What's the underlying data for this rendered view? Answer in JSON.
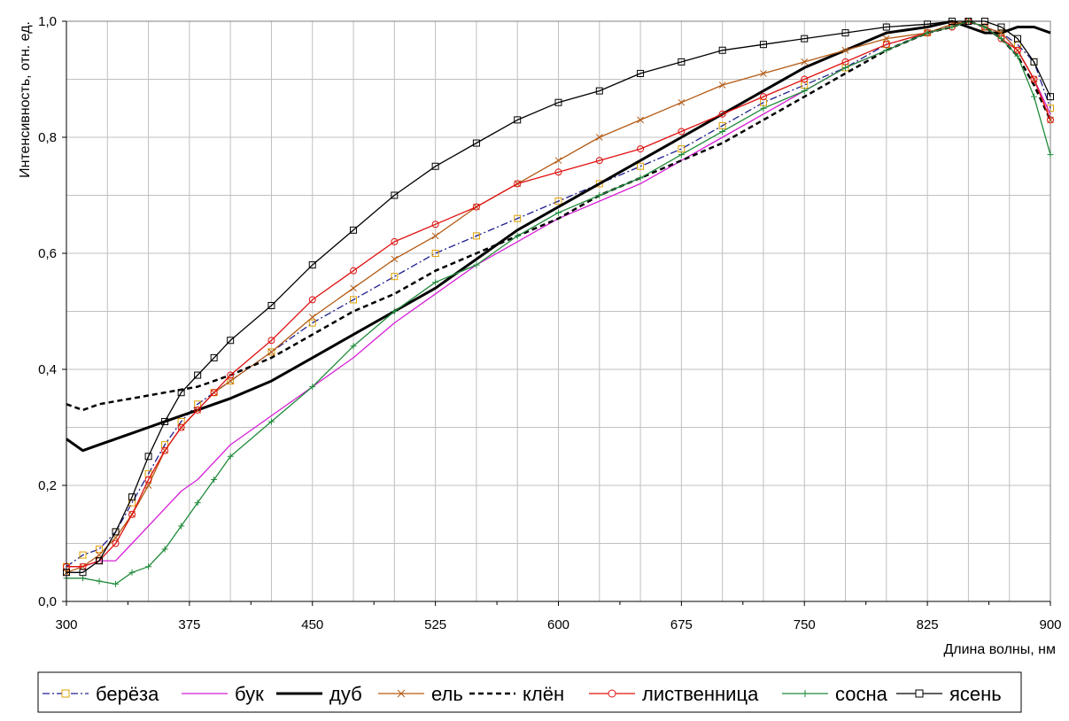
{
  "chart_data": {
    "type": "line",
    "ylabel": "Интенсивность, отн. ед.",
    "xlabel": "Длина волны, нм",
    "xlim": [
      300,
      900
    ],
    "ylim": [
      0,
      1.0
    ],
    "x_ticks": [
      300,
      375,
      450,
      525,
      600,
      675,
      750,
      825,
      900
    ],
    "x_tick_labels": [
      "300",
      "375",
      "450",
      "525",
      "600",
      "675",
      "750",
      "825",
      "900"
    ],
    "y_ticks": [
      0,
      0.2,
      0.4,
      0.6,
      0.8,
      1.0
    ],
    "y_tick_labels": [
      "0,0",
      "0,2",
      "0,4",
      "0,6",
      "0,8",
      "1,0"
    ],
    "grid": true,
    "legend_position": "bottom",
    "x": [
      300,
      310,
      320,
      330,
      340,
      350,
      360,
      370,
      380,
      390,
      400,
      425,
      450,
      475,
      500,
      525,
      550,
      575,
      600,
      625,
      650,
      675,
      700,
      725,
      750,
      775,
      800,
      825,
      840,
      850,
      860,
      870,
      880,
      890,
      900
    ],
    "series": [
      {
        "name": "берёза",
        "color": "#1f1f8f",
        "dash": "8,3,2,3",
        "marker": "square",
        "marker_color": "#e0a000",
        "values": [
          0.06,
          0.08,
          0.09,
          0.12,
          0.17,
          0.22,
          0.27,
          0.31,
          0.34,
          0.36,
          0.38,
          0.43,
          0.48,
          0.52,
          0.56,
          0.6,
          0.63,
          0.66,
          0.69,
          0.72,
          0.75,
          0.78,
          0.82,
          0.86,
          0.89,
          0.92,
          0.96,
          0.98,
          0.995,
          1.0,
          0.99,
          0.98,
          0.96,
          0.93,
          0.85
        ]
      },
      {
        "name": "бук",
        "color": "#d61fd6",
        "dash": "",
        "marker": "none",
        "values": [
          0.06,
          0.06,
          0.07,
          0.07,
          0.1,
          0.13,
          0.16,
          0.19,
          0.21,
          0.24,
          0.27,
          0.32,
          0.37,
          0.42,
          0.48,
          0.53,
          0.58,
          0.62,
          0.66,
          0.69,
          0.72,
          0.76,
          0.8,
          0.84,
          0.88,
          0.92,
          0.95,
          0.98,
          0.99,
          1.0,
          0.99,
          0.98,
          0.95,
          0.9,
          0.84
        ]
      },
      {
        "name": "дуб",
        "color": "#000000",
        "dash": "",
        "marker": "none",
        "width": 3,
        "values": [
          0.28,
          0.26,
          0.27,
          0.28,
          0.29,
          0.3,
          0.31,
          0.32,
          0.33,
          0.34,
          0.35,
          0.38,
          0.42,
          0.46,
          0.5,
          0.54,
          0.59,
          0.64,
          0.68,
          0.72,
          0.76,
          0.8,
          0.84,
          0.88,
          0.92,
          0.95,
          0.98,
          0.99,
          1.0,
          0.99,
          0.98,
          0.98,
          0.99,
          0.99,
          0.98
        ]
      },
      {
        "name": "ель",
        "color": "#b45a14",
        "dash": "",
        "marker": "x",
        "values": [
          0.05,
          0.06,
          0.08,
          0.11,
          0.15,
          0.2,
          0.26,
          0.3,
          0.33,
          0.36,
          0.38,
          0.43,
          0.49,
          0.54,
          0.59,
          0.63,
          0.68,
          0.72,
          0.76,
          0.8,
          0.83,
          0.86,
          0.89,
          0.91,
          0.93,
          0.95,
          0.97,
          0.98,
          0.995,
          1.0,
          0.99,
          0.98,
          0.95,
          0.9,
          0.83
        ]
      },
      {
        "name": "клён",
        "color": "#000000",
        "dash": "6,4",
        "marker": "none",
        "width": 2.5,
        "values": [
          0.34,
          0.33,
          0.34,
          0.345,
          0.35,
          0.355,
          0.36,
          0.365,
          0.37,
          0.38,
          0.39,
          0.42,
          0.46,
          0.5,
          0.53,
          0.57,
          0.6,
          0.63,
          0.66,
          0.7,
          0.73,
          0.76,
          0.79,
          0.83,
          0.87,
          0.91,
          0.95,
          0.98,
          0.99,
          1.0,
          0.99,
          0.97,
          0.94,
          0.89,
          0.83
        ]
      },
      {
        "name": "лиственница",
        "color": "#e01010",
        "dash": "",
        "marker": "circle",
        "values": [
          0.06,
          0.06,
          0.07,
          0.1,
          0.15,
          0.21,
          0.26,
          0.3,
          0.33,
          0.36,
          0.39,
          0.45,
          0.52,
          0.57,
          0.62,
          0.65,
          0.68,
          0.72,
          0.74,
          0.76,
          0.78,
          0.81,
          0.84,
          0.87,
          0.9,
          0.93,
          0.96,
          0.98,
          0.99,
          1.0,
          0.99,
          0.97,
          0.95,
          0.9,
          0.83
        ]
      },
      {
        "name": "сосна",
        "color": "#1f8a3a",
        "dash": "",
        "marker": "plus",
        "values": [
          0.04,
          0.04,
          0.035,
          0.03,
          0.05,
          0.06,
          0.09,
          0.13,
          0.17,
          0.21,
          0.25,
          0.31,
          0.37,
          0.44,
          0.5,
          0.55,
          0.58,
          0.63,
          0.67,
          0.7,
          0.73,
          0.77,
          0.81,
          0.85,
          0.88,
          0.92,
          0.95,
          0.98,
          0.99,
          1.0,
          0.99,
          0.97,
          0.94,
          0.87,
          0.77
        ]
      },
      {
        "name": "ясень",
        "color": "#000000",
        "dash": "",
        "marker": "square",
        "values": [
          0.05,
          0.05,
          0.07,
          0.12,
          0.18,
          0.25,
          0.31,
          0.36,
          0.39,
          0.42,
          0.45,
          0.51,
          0.58,
          0.64,
          0.7,
          0.75,
          0.79,
          0.83,
          0.86,
          0.88,
          0.91,
          0.93,
          0.95,
          0.96,
          0.97,
          0.98,
          0.99,
          0.995,
          1.0,
          1.0,
          1.0,
          0.99,
          0.97,
          0.93,
          0.87
        ]
      }
    ]
  }
}
